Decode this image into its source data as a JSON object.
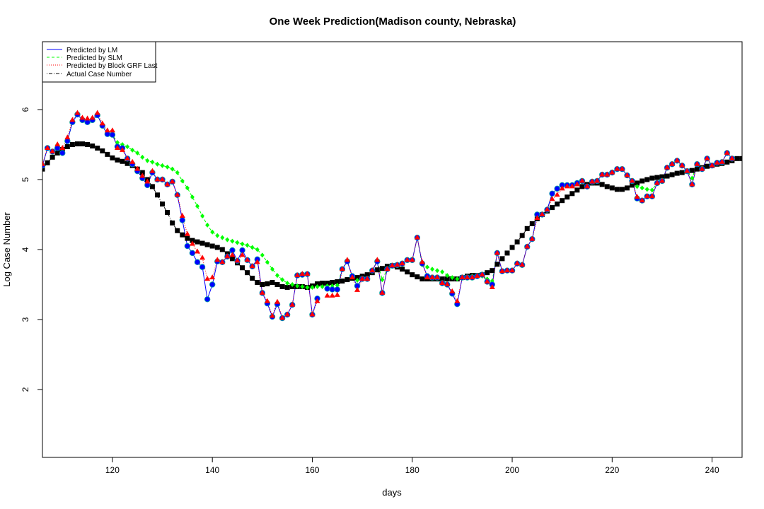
{
  "chart_data": {
    "type": "scatter",
    "title": "One Week Prediction(Madison county, Nebraska)",
    "xlabel": "days",
    "ylabel": "Log Case Number",
    "xlim": [
      106,
      246
    ],
    "ylim": [
      1.03,
      6.97
    ],
    "x_ticks": [
      "120",
      "140",
      "160",
      "180",
      "200",
      "220",
      "240"
    ],
    "y_ticks": [
      "2",
      "3",
      "4",
      "5",
      "6"
    ],
    "grid": false,
    "legend_position": "top-left",
    "x_start": 106,
    "series": [
      {
        "name": "Predicted by LM",
        "color": "#0000ff",
        "line_style": "solid",
        "marker": "circle",
        "values": [
          5.2,
          5.45,
          5.4,
          5.45,
          5.38,
          5.55,
          5.82,
          5.93,
          5.85,
          5.82,
          5.85,
          5.92,
          5.77,
          5.65,
          5.64,
          5.47,
          5.45,
          5.3,
          5.22,
          5.12,
          5.02,
          4.92,
          5.1,
          5.0,
          5.0,
          4.93,
          4.97,
          4.78,
          4.42,
          4.05,
          3.95,
          3.82,
          3.75,
          3.29,
          3.5,
          3.83,
          3.82,
          3.9,
          3.99,
          3.84,
          3.99,
          3.85,
          3.76,
          3.86,
          3.38,
          3.23,
          3.04,
          3.22,
          3.02,
          3.07,
          3.21,
          3.63,
          3.64,
          3.65,
          3.07,
          3.3,
          null,
          3.44,
          3.43,
          3.43,
          3.72,
          3.83,
          3.62,
          3.48,
          3.58,
          3.58,
          3.7,
          3.83,
          3.38,
          3.72,
          3.77,
          3.78,
          3.8,
          3.85,
          3.85,
          4.17,
          3.8,
          3.62,
          3.6,
          3.6,
          3.52,
          3.5,
          3.37,
          3.22,
          3.6,
          3.6,
          3.6,
          3.62,
          3.64,
          3.54,
          3.5,
          3.95,
          3.69,
          3.7,
          3.7,
          3.8,
          3.78,
          4.04,
          4.15,
          4.5,
          4.5,
          4.57,
          4.8,
          4.87,
          4.92,
          4.92,
          4.92,
          4.95,
          4.98,
          4.9,
          4.97,
          4.98,
          5.07,
          5.07,
          5.1,
          5.15,
          5.15,
          5.06,
          4.98,
          4.73,
          4.7,
          4.76,
          4.76,
          4.95,
          4.98,
          5.17,
          5.22,
          5.27,
          5.2,
          5.12,
          4.93,
          5.22,
          5.15,
          5.3,
          5.2,
          5.24,
          5.25,
          5.38,
          5.3
        ]
      },
      {
        "name": "Predicted by SLM",
        "color": "#00ff00",
        "line_style": "dashed",
        "marker": "diamond",
        "values": [
          5.2,
          5.45,
          5.4,
          5.5,
          5.38,
          5.55,
          5.82,
          5.93,
          5.85,
          5.82,
          5.85,
          5.92,
          5.77,
          5.65,
          5.64,
          5.53,
          5.5,
          5.47,
          5.42,
          5.38,
          5.32,
          5.27,
          5.25,
          5.22,
          5.2,
          5.18,
          5.15,
          5.1,
          4.98,
          4.88,
          4.75,
          4.62,
          4.48,
          4.35,
          4.25,
          4.2,
          4.17,
          4.14,
          4.12,
          4.1,
          4.08,
          4.06,
          4.03,
          4.0,
          3.92,
          3.82,
          3.72,
          3.63,
          3.57,
          3.52,
          3.5,
          3.48,
          3.47,
          3.46,
          3.46,
          3.47,
          3.47,
          3.48,
          3.48,
          3.49,
          3.72,
          3.83,
          3.62,
          3.56,
          3.58,
          3.58,
          3.7,
          3.83,
          3.57,
          3.72,
          3.77,
          3.78,
          3.8,
          3.85,
          3.85,
          4.17,
          3.78,
          3.75,
          3.72,
          3.7,
          3.68,
          3.63,
          3.6,
          3.58,
          3.6,
          3.6,
          3.62,
          3.62,
          3.62,
          3.58,
          3.55,
          3.95,
          3.69,
          3.7,
          3.7,
          3.8,
          3.78,
          4.04,
          4.15,
          4.5,
          4.5,
          4.57,
          4.8,
          4.87,
          4.92,
          4.92,
          4.92,
          4.95,
          4.98,
          4.9,
          4.97,
          4.98,
          5.07,
          5.07,
          5.1,
          5.15,
          5.15,
          5.06,
          4.98,
          4.9,
          4.88,
          4.86,
          4.85,
          4.95,
          4.98,
          5.17,
          5.22,
          5.27,
          5.2,
          5.12,
          5.02,
          5.22,
          5.15,
          5.3,
          5.2,
          5.24,
          5.25,
          5.38,
          5.3
        ]
      },
      {
        "name": "Predicted by Block GRF Last",
        "color": "#ff0000",
        "line_style": "dotted",
        "marker": "triangle",
        "values": [
          5.22,
          5.45,
          5.4,
          5.5,
          5.45,
          5.6,
          5.85,
          5.95,
          5.88,
          5.87,
          5.88,
          5.95,
          5.8,
          5.7,
          5.7,
          5.45,
          5.42,
          5.3,
          5.25,
          5.15,
          5.05,
          4.97,
          5.12,
          5.0,
          5.0,
          4.93,
          4.97,
          4.78,
          4.48,
          4.22,
          4.08,
          3.97,
          3.88,
          3.58,
          3.6,
          3.85,
          3.82,
          3.9,
          3.92,
          3.84,
          3.92,
          3.85,
          3.76,
          3.82,
          3.38,
          3.26,
          3.05,
          3.25,
          3.02,
          3.07,
          3.21,
          3.63,
          3.65,
          3.65,
          3.07,
          3.26,
          null,
          3.34,
          3.34,
          3.35,
          3.72,
          3.85,
          3.6,
          3.42,
          3.58,
          3.58,
          3.7,
          3.85,
          3.38,
          3.72,
          3.77,
          3.78,
          3.8,
          3.85,
          3.85,
          4.17,
          3.82,
          3.6,
          3.6,
          3.6,
          3.52,
          3.5,
          3.4,
          3.26,
          3.6,
          3.6,
          3.6,
          3.62,
          3.64,
          3.54,
          3.46,
          3.95,
          3.69,
          3.7,
          3.7,
          3.8,
          3.78,
          4.04,
          4.15,
          4.45,
          4.5,
          4.57,
          4.72,
          4.78,
          4.87,
          4.9,
          4.9,
          4.93,
          4.98,
          4.9,
          4.97,
          4.98,
          5.07,
          5.07,
          5.1,
          5.15,
          5.15,
          5.06,
          4.98,
          4.75,
          4.7,
          4.76,
          4.76,
          4.95,
          4.98,
          5.17,
          5.22,
          5.27,
          5.2,
          5.12,
          4.93,
          5.22,
          5.15,
          5.3,
          5.2,
          5.24,
          5.25,
          5.38,
          5.3
        ]
      },
      {
        "name": "Actual Case Number",
        "color": "#000000",
        "line_style": "dotdash",
        "marker": "square",
        "values": [
          5.15,
          5.24,
          5.32,
          5.38,
          5.43,
          5.47,
          5.5,
          5.51,
          5.51,
          5.5,
          5.48,
          5.45,
          5.41,
          5.36,
          5.31,
          5.28,
          5.26,
          5.23,
          5.2,
          5.15,
          5.1,
          5.0,
          4.9,
          4.78,
          4.65,
          4.53,
          4.38,
          4.27,
          4.21,
          4.16,
          4.13,
          4.11,
          4.09,
          4.07,
          4.05,
          4.03,
          4.0,
          3.94,
          3.87,
          3.81,
          3.74,
          3.67,
          3.59,
          3.53,
          3.5,
          3.51,
          3.53,
          3.5,
          3.47,
          3.46,
          3.47,
          3.47,
          3.47,
          3.46,
          3.48,
          3.51,
          3.52,
          3.52,
          3.53,
          3.54,
          3.55,
          3.57,
          3.59,
          3.6,
          3.62,
          3.64,
          3.67,
          3.71,
          3.73,
          3.76,
          3.77,
          3.75,
          3.72,
          3.68,
          3.64,
          3.61,
          3.58,
          3.58,
          3.58,
          3.58,
          3.58,
          3.58,
          3.58,
          3.58,
          3.6,
          3.62,
          3.63,
          3.63,
          3.64,
          3.67,
          3.7,
          3.79,
          3.87,
          3.95,
          4.03,
          4.11,
          4.2,
          4.3,
          4.37,
          4.44,
          4.5,
          4.55,
          4.6,
          4.65,
          4.7,
          4.75,
          4.8,
          4.85,
          4.9,
          4.93,
          4.95,
          4.95,
          4.93,
          4.9,
          4.88,
          4.86,
          4.86,
          4.88,
          4.92,
          4.95,
          4.98,
          5.0,
          5.02,
          5.03,
          5.04,
          5.05,
          5.07,
          5.09,
          5.1,
          5.12,
          5.13,
          5.15,
          5.17,
          5.19,
          5.2,
          5.22,
          5.23,
          5.25,
          5.27,
          5.3,
          5.3
        ]
      }
    ]
  }
}
